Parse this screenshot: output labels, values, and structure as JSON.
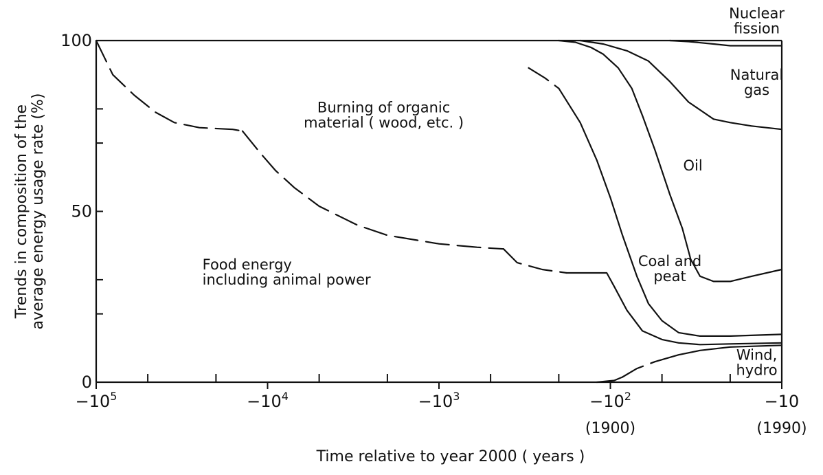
{
  "chart_data": {
    "type": "area",
    "xlabel": "Time relative to year 2000 ( years )",
    "ylabel_lines": [
      "Trends in composition of the",
      "average energy usage rate (%)"
    ],
    "x_scale": "log",
    "xlim": [
      -100000,
      -10
    ],
    "ylim": [
      0,
      100
    ],
    "x_ticks": [
      {
        "value": -100000,
        "base": "−10",
        "exp": "5",
        "sub": ""
      },
      {
        "value": -10000,
        "base": "−10",
        "exp": "4",
        "sub": ""
      },
      {
        "value": -1000,
        "base": "−10",
        "exp": "3",
        "sub": ""
      },
      {
        "value": -100,
        "base": "−10",
        "exp": "2",
        "sub": "(1900)"
      },
      {
        "value": -10,
        "base": "−10",
        "exp": "",
        "sub": "(1990)"
      }
    ],
    "x_minor_ticks": [
      -50000,
      -20000,
      -5000,
      -2000,
      -500,
      -200,
      -50,
      -20
    ],
    "y_ticks": [
      {
        "value": 0,
        "label": "0"
      },
      {
        "value": 50,
        "label": "50"
      },
      {
        "value": 100,
        "label": "100"
      }
    ],
    "y_minor_ticks": [
      20,
      30,
      70,
      80
    ],
    "boundaries": [
      {
        "name": "Food energy / Burning of organic material",
        "segments": [
          {
            "style": "dashed",
            "points": [
              [
                -100000,
                100
              ],
              [
                -80000,
                90
              ],
              [
                -60000,
                84
              ],
              [
                -45000,
                79
              ],
              [
                -35000,
                76
              ],
              [
                -25000,
                74.5
              ],
              [
                -16000,
                74
              ],
              [
                -14000,
                73.5
              ]
            ]
          },
          {
            "style": "dashed",
            "points": [
              [
                -14000,
                73.5
              ],
              [
                -11000,
                67
              ],
              [
                -9000,
                62
              ],
              [
                -7000,
                57
              ],
              [
                -5000,
                51.5
              ],
              [
                -3000,
                46
              ],
              [
                -2000,
                43
              ],
              [
                -1000,
                40.5
              ],
              [
                -600,
                39.5
              ],
              [
                -420,
                39
              ]
            ]
          },
          {
            "style": "dashed",
            "points": [
              [
                -420,
                39
              ],
              [
                -350,
                35
              ],
              [
                -250,
                33
              ],
              [
                -180,
                32
              ]
            ]
          },
          {
            "style": "solid",
            "points": [
              [
                -180,
                32
              ],
              [
                -105,
                32
              ],
              [
                -95,
                28
              ],
              [
                -80,
                21
              ],
              [
                -65,
                15
              ],
              [
                -50,
                12.5
              ],
              [
                -40,
                11.5
              ],
              [
                -30,
                11
              ],
              [
                -20,
                11.2
              ],
              [
                -10,
                11.5
              ]
            ]
          }
        ]
      },
      {
        "name": "Burning of organic material / Coal and peat",
        "segments": [
          {
            "style": "dashed",
            "points": [
              [
                -300,
                92
              ],
              [
                -240,
                89
              ],
              [
                -200,
                86
              ]
            ]
          },
          {
            "style": "solid",
            "points": [
              [
                -200,
                86
              ],
              [
                -150,
                76
              ],
              [
                -120,
                65
              ],
              [
                -100,
                54
              ],
              [
                -85,
                43
              ],
              [
                -70,
                31
              ],
              [
                -60,
                23
              ],
              [
                -50,
                18
              ],
              [
                -40,
                14.5
              ],
              [
                -30,
                13.5
              ],
              [
                -20,
                13.5
              ],
              [
                -10,
                14
              ]
            ]
          }
        ]
      },
      {
        "name": "Coal and peat / Oil",
        "segments": [
          {
            "style": "solid",
            "points": [
              [
                -200,
                100
              ],
              [
                -160,
                99.5
              ],
              [
                -130,
                98
              ],
              [
                -110,
                96
              ],
              [
                -90,
                92
              ],
              [
                -75,
                86
              ],
              [
                -65,
                78
              ],
              [
                -55,
                68
              ],
              [
                -45,
                55
              ],
              [
                -38,
                45
              ],
              [
                -34,
                36
              ],
              [
                -30,
                31
              ],
              [
                -25,
                29.5
              ],
              [
                -20,
                29.5
              ],
              [
                -15,
                31
              ],
              [
                -10,
                33
              ]
            ]
          }
        ]
      },
      {
        "name": "Oil / Natural gas",
        "segments": [
          {
            "style": "solid",
            "points": [
              [
                -150,
                100
              ],
              [
                -110,
                99
              ],
              [
                -80,
                97
              ],
              [
                -60,
                94
              ],
              [
                -45,
                88
              ],
              [
                -35,
                82
              ],
              [
                -25,
                77
              ],
              [
                -20,
                76
              ],
              [
                -15,
                75
              ],
              [
                -10,
                74
              ]
            ]
          }
        ]
      },
      {
        "name": "Natural gas / Nuclear fission",
        "segments": [
          {
            "style": "solid",
            "points": [
              [
                -45,
                100
              ],
              [
                -35,
                99.7
              ],
              [
                -25,
                99
              ],
              [
                -20,
                98.5
              ],
              [
                -15,
                98.5
              ],
              [
                -10,
                98.5
              ]
            ]
          }
        ]
      },
      {
        "name": "Wind, hydro",
        "segments": [
          {
            "style": "solid",
            "points": [
              [
                -120,
                0
              ],
              [
                -95,
                0.5
              ],
              [
                -85,
                1.5
              ]
            ]
          },
          {
            "style": "dashed",
            "points": [
              [
                -85,
                1.5
              ],
              [
                -70,
                4
              ],
              [
                -55,
                6
              ]
            ]
          },
          {
            "style": "solid",
            "points": [
              [
                -55,
                6
              ],
              [
                -40,
                8
              ],
              [
                -30,
                9.3
              ],
              [
                -20,
                10.3
              ],
              [
                -10,
                10.8
              ]
            ]
          }
        ]
      }
    ],
    "annotations": [
      {
        "key": "nuclear",
        "lines": [
          "Nuclear",
          "fission"
        ],
        "x": -14,
        "y": 106.5,
        "anchor": "middle"
      },
      {
        "key": "natural_gas",
        "lines": [
          "Natural",
          "gas"
        ],
        "x": -14,
        "y": 88.5,
        "anchor": "middle"
      },
      {
        "key": "organic",
        "lines": [
          "Burning of organic",
          "material ( wood, etc. )"
        ],
        "x": -2100,
        "y": 79,
        "anchor": "middle"
      },
      {
        "key": "oil",
        "lines": [
          "Oil"
        ],
        "x": -33,
        "y": 62,
        "anchor": "middle"
      },
      {
        "key": "coal",
        "lines": [
          "Coal and",
          "peat"
        ],
        "x": -45,
        "y": 34,
        "anchor": "middle"
      },
      {
        "key": "food",
        "lines": [
          "Food energy",
          "including animal power"
        ],
        "x": -24000,
        "y": 33,
        "anchor": "start"
      },
      {
        "key": "wind",
        "lines": [
          "Wind,",
          "hydro"
        ],
        "x": -14,
        "y": 6.5,
        "anchor": "middle"
      }
    ],
    "legend": "none",
    "grid": false
  }
}
